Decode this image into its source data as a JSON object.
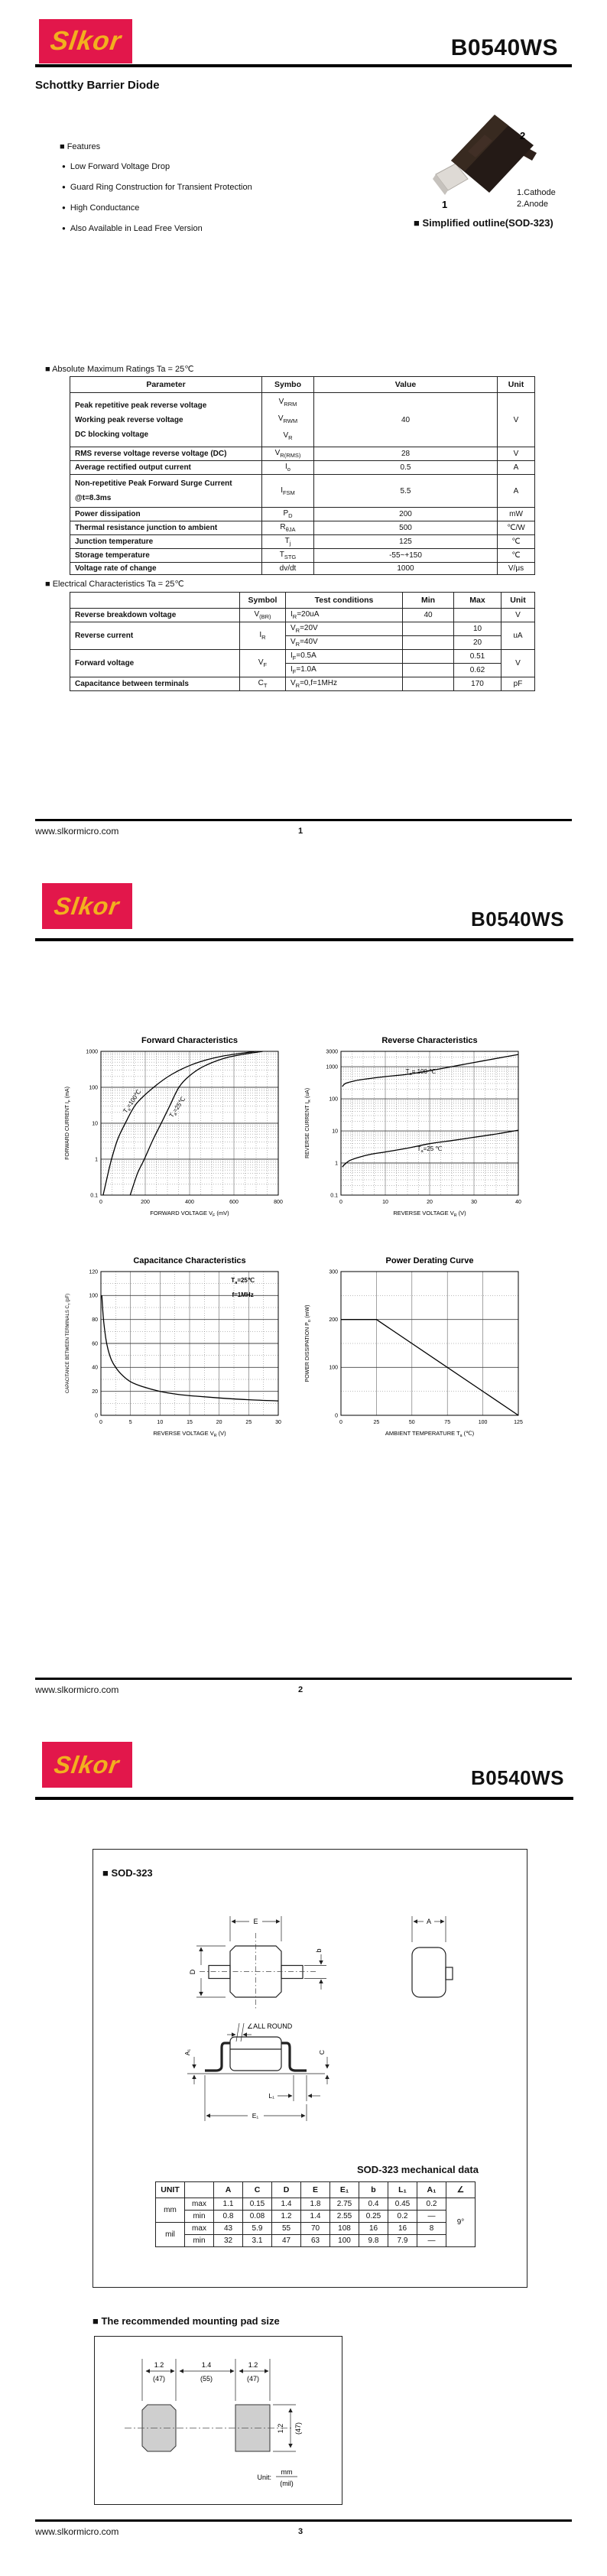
{
  "brand": {
    "logo_text": "Slkor",
    "part_number": "B0540WS",
    "website": "www.slkormicro.com",
    "red": "#E2174B",
    "yellow": "#F2B01E"
  },
  "page1": {
    "page_number": "1",
    "subtitle": "Schottky Barrier Diode",
    "features_heading": "■ Features",
    "bullet": "●",
    "features": [
      "Low Forward Voltage Drop",
      "Guard Ring Construction for Transient Protection",
      "High Conductance",
      "Also Available in Lead Free Version"
    ],
    "outline": {
      "pin_top": "2",
      "pin_bottom": "1",
      "legend1": "1.Cathode",
      "legend2": "2.Anode",
      "caption": "■ Simplified outline(SOD-323)"
    },
    "abs_max": {
      "heading": "■ Absolute Maximum Ratings Ta = 25℃",
      "cols": [
        251,
        68,
        240,
        49
      ],
      "headers": [
        "Parameter",
        "Symbo",
        "Value",
        "Unit"
      ],
      "rows": [
        [
          {
            "lines": [
              "Peak repetitive peak reverse voltage",
              "Working peak reverse voltage",
              "DC  blocking  voltage"
            ],
            "al": "l",
            "b": 1
          },
          {
            "lines": [
              "V|RRM",
              "V|RWM",
              "V|R"
            ]
          },
          "40",
          "V"
        ],
        [
          {
            "t": "RMS reverse voltage reverse voltage (DC)",
            "al": "l",
            "b": 1
          },
          "V|R(RMS)",
          "28",
          "V"
        ],
        [
          {
            "t": "Average rectified output current",
            "al": "l",
            "b": 1
          },
          "I|o",
          "0.5",
          "A"
        ],
        [
          {
            "lines": [
              "Non-repetitive Peak Forward Surge Current",
              "@t=8.3ms"
            ],
            "al": "l",
            "b": 1
          },
          "I|FSM",
          "5.5",
          "A"
        ],
        [
          {
            "t": "Power dissipation",
            "al": "l",
            "b": 1
          },
          "P|D",
          "200",
          "mW"
        ],
        [
          {
            "t": "Thermal resistance junction to ambient",
            "al": "l",
            "b": 1
          },
          "R|θJA",
          "500",
          "℃/W"
        ],
        [
          {
            "t": "Junction temperature",
            "al": "l",
            "b": 1
          },
          "T|j",
          "125",
          "℃"
        ],
        [
          {
            "t": "Storage temperature",
            "al": "l",
            "b": 1
          },
          "T|STG",
          "-55~+150",
          "℃"
        ],
        [
          {
            "t": "Voltage rate of change",
            "al": "l",
            "b": 1
          },
          "dv/dt",
          "1000",
          "V/μs"
        ]
      ]
    },
    "elec": {
      "heading": "■ Electrical Characteristics Ta = 25℃",
      "cols": [
        222,
        60,
        153,
        67,
        62,
        44
      ],
      "headers": [
        "",
        "Symbol",
        "Test conditions",
        "Min",
        "Max",
        "Unit"
      ],
      "rows": [
        [
          {
            "t": "Reverse breakdown voltage",
            "al": "l",
            "b": 1
          },
          "V|(BR)",
          {
            "t": "I|R|=20uA",
            "al": "l"
          },
          "40",
          "",
          "V"
        ],
        [
          {
            "t": "Reverse current",
            "al": "l",
            "b": 1,
            "rs": 2
          },
          {
            "t": "I|R",
            "rs": 2
          },
          {
            "t": "V|R|=20V",
            "al": "l"
          },
          "",
          "10",
          {
            "t": "uA",
            "rs": 2
          }
        ],
        [
          {
            "t": "V|R|=40V",
            "al": "l"
          },
          "",
          "20"
        ],
        [
          {
            "t": "Forward voltage",
            "al": "l",
            "b": 1,
            "rs": 2
          },
          {
            "t": "V|F",
            "rs": 2
          },
          {
            "t": "I|F|=0.5A",
            "al": "l"
          },
          "",
          "0.51",
          {
            "t": "V",
            "rs": 2
          }
        ],
        [
          {
            "t": "I|F|=1.0A",
            "al": "l"
          },
          "",
          "0.62"
        ],
        [
          {
            "t": "Capacitance between terminals",
            "al": "l",
            "b": 1
          },
          "C|T",
          {
            "t": "V|R|=0,f=1MHz",
            "al": "l"
          },
          "",
          "170",
          "pF"
        ]
      ]
    }
  },
  "page2": {
    "page_number": "2"
  },
  "page3": {
    "page_number": "3",
    "sod_heading": "■ SOD-323",
    "mech_caption": "SOD-323 mechanical data",
    "mech": {
      "cols": [
        38,
        38,
        38,
        38,
        38,
        38,
        38,
        38,
        38,
        38,
        38
      ],
      "headers": [
        "UNIT",
        "",
        "A",
        "C",
        "D",
        "E",
        "E₁",
        "b",
        "L₁",
        "A₁",
        "∠"
      ],
      "rows": [
        [
          {
            "t": "mm",
            "rs": 2
          },
          "max",
          "1.1",
          "0.15",
          "1.4",
          "1.8",
          "2.75",
          "0.4",
          "0.45",
          "0.2",
          {
            "t": "9°",
            "rs": 4
          }
        ],
        [
          "min",
          "0.8",
          "0.08",
          "1.2",
          "1.4",
          "2.55",
          "0.25",
          "0.2",
          "—"
        ],
        [
          {
            "t": "mil",
            "rs": 2
          },
          "max",
          "43",
          "5.9",
          "55",
          "70",
          "108",
          "16",
          "16",
          "8"
        ],
        [
          "min",
          "32",
          "3.1",
          "47",
          "63",
          "100",
          "9.8",
          "7.9",
          "—"
        ]
      ]
    },
    "dims": {
      "E": "E",
      "D": "D",
      "b": "b",
      "A": "A",
      "A1": "A₁",
      "C": "C",
      "L1": "L₁",
      "E1": "E₁",
      "allround": "∠ALL ROUND"
    },
    "pad_heading": "■ The recommended mounting pad size",
    "pad": {
      "top_dims": [
        [
          "1.2",
          "(47)"
        ],
        [
          "1.4",
          "(55)"
        ],
        [
          "1.2",
          "(47)"
        ]
      ],
      "side_dim": [
        "1.2",
        "(47)"
      ],
      "unit_prefix": "Unit:",
      "unit_num": "mm",
      "unit_den": "(mil)"
    }
  },
  "chart_data": [
    {
      "type": "line",
      "title": "Forward   Characteristics",
      "xlabel": "FORWARD VOLTAGE   V|F|   (mV)",
      "ylabel": "FORWARD CURRENT   I|F|   (mA)",
      "xscale": "linear",
      "xlim": [
        0,
        800
      ],
      "xticks": [
        0,
        200,
        400,
        600,
        800
      ],
      "xminor": 4,
      "yscale": "log",
      "ylim": [
        0.1,
        1000
      ],
      "yticks": [
        0.1,
        1,
        10,
        100,
        1000
      ],
      "grid": true,
      "legend_position": "inline-labels",
      "series": [
        {
          "name": "Ta=100℃",
          "points": [
            [
              10,
              0.1
            ],
            [
              30,
              0.35
            ],
            [
              48,
              1
            ],
            [
              75,
              3.5
            ],
            [
              110,
              10
            ],
            [
              160,
              35
            ],
            [
              238,
              100
            ],
            [
              320,
              230
            ],
            [
              420,
              450
            ],
            [
              540,
              720
            ],
            [
              700,
              1000
            ]
          ]
        },
        {
          "name": "Ta=25℃",
          "points": [
            [
              132,
              0.1
            ],
            [
              165,
              0.4
            ],
            [
              196,
              1
            ],
            [
              235,
              3.5
            ],
            [
              272,
              10
            ],
            [
              310,
              30
            ],
            [
              352,
              100
            ],
            [
              400,
              210
            ],
            [
              470,
              400
            ],
            [
              580,
              700
            ],
            [
              730,
              1000
            ]
          ]
        }
      ],
      "labels": [
        {
          "text": "T|a|=100℃",
          "x": 148,
          "y": 38,
          "r": -56
        },
        {
          "text": "T|a|=25℃",
          "x": 352,
          "y": 26,
          "r": -56
        }
      ]
    },
    {
      "type": "line",
      "title": "Reverse   Characteristics",
      "xlabel": "REVERSE VOLTAGE   V|R|   (V)",
      "ylabel": "REVERSE CURRENT   I|R|   (uA)",
      "xscale": "linear",
      "xlim": [
        0,
        40
      ],
      "xticks": [
        0,
        10,
        20,
        30,
        40
      ],
      "xminor": 4,
      "yscale": "log",
      "ylim": [
        0.1,
        3000
      ],
      "yticks": [
        0.1,
        1,
        10,
        100,
        1000,
        3000
      ],
      "grid": true,
      "legend_position": "inline-labels",
      "series": [
        {
          "name": "Ta=100℃",
          "points": [
            [
              0.3,
              240
            ],
            [
              1,
              300
            ],
            [
              3,
              360
            ],
            [
              6,
              420
            ],
            [
              10,
              490
            ],
            [
              15,
              580
            ],
            [
              20,
              750
            ],
            [
              25,
              1000
            ],
            [
              30,
              1350
            ],
            [
              35,
              1800
            ],
            [
              40,
              2400
            ]
          ]
        },
        {
          "name": "Ta=25℃",
          "points": [
            [
              0.3,
              0.75
            ],
            [
              1,
              0.95
            ],
            [
              2,
              1.2
            ],
            [
              4,
              1.5
            ],
            [
              7,
              1.9
            ],
            [
              10,
              2.2
            ],
            [
              15,
              2.9
            ],
            [
              20,
              4
            ],
            [
              25,
              5
            ],
            [
              30,
              6.3
            ],
            [
              35,
              8
            ],
            [
              40,
              10.5
            ]
          ]
        }
      ],
      "labels": [
        {
          "text": "T|a|= 100 ℃",
          "x": 18,
          "y": 620,
          "r": 0
        },
        {
          "text": "T|a|=25 ℃",
          "x": 20,
          "y": 2.4,
          "r": 0
        }
      ]
    },
    {
      "type": "line",
      "title": "Capacitance Characteristics",
      "xlabel": "REVERSE VOLTAGE   V|R|   (V)",
      "ylabel": "CAPACITANCE BETWEEN TERMINALS   C|T|  (pF)",
      "xscale": "linear",
      "xlim": [
        0,
        30
      ],
      "xticks": [
        0,
        5,
        10,
        15,
        20,
        25,
        30
      ],
      "xminor": 2,
      "yscale": "linear",
      "ylim": [
        0,
        120
      ],
      "yticks": [
        0,
        20,
        40,
        60,
        80,
        100,
        120
      ],
      "yminor": 2,
      "grid": true,
      "legend_position": "inline-labels",
      "series": [
        {
          "name": "CT",
          "points": [
            [
              0.15,
              100
            ],
            [
              0.4,
              82
            ],
            [
              0.8,
              65
            ],
            [
              1.2,
              55
            ],
            [
              1.8,
              46
            ],
            [
              2.5,
              40
            ],
            [
              3.5,
              34
            ],
            [
              5,
              28
            ],
            [
              7,
              24
            ],
            [
              10,
              20
            ],
            [
              13,
              17.5
            ],
            [
              16,
              16
            ],
            [
              20,
              14.5
            ],
            [
              25,
              13
            ],
            [
              30,
              12
            ]
          ]
        }
      ],
      "labels": [
        {
          "text": "T|a|=25℃",
          "x": 24,
          "y": 111,
          "r": 0,
          "b": 1
        },
        {
          "text": "f=1MHz",
          "x": 24,
          "y": 99,
          "r": 0,
          "b": 1
        }
      ]
    },
    {
      "type": "line",
      "title": "Power Derating Curve",
      "xlabel": "AMBIENT TEMPERATURE   T|a|   (℃)",
      "ylabel": "POWER DISSIPATION   P|D|   (mW)",
      "xscale": "linear",
      "xlim": [
        0,
        125
      ],
      "xticks": [
        0,
        25,
        50,
        75,
        100,
        125
      ],
      "xminor": 1,
      "yscale": "linear",
      "ylim": [
        0,
        300
      ],
      "yticks": [
        0,
        100,
        200,
        300
      ],
      "yminor": 2,
      "grid": true,
      "legend_position": "none",
      "series": [
        {
          "name": "PD",
          "points": [
            [
              0,
              200
            ],
            [
              25,
              200
            ],
            [
              125,
              0
            ]
          ],
          "smooth": false
        }
      ],
      "labels": []
    }
  ]
}
